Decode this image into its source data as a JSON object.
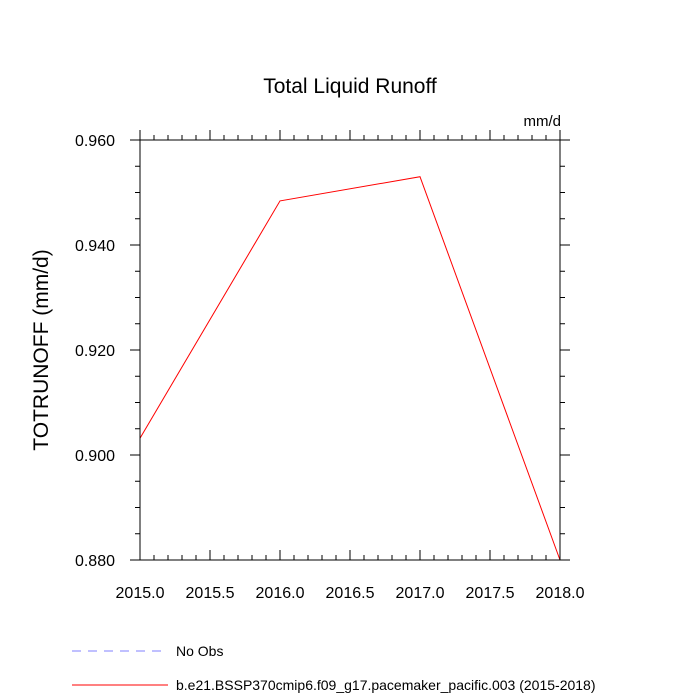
{
  "chart_data": {
    "type": "line",
    "title": "Total Liquid Runoff",
    "units": "mm/d",
    "ylabel": "TOTRUNOFF  (mm/d)",
    "xlabel": "",
    "xlim": [
      2015.0,
      2018.0
    ],
    "ylim": [
      0.88,
      0.96
    ],
    "x_ticks": [
      "2015.0",
      "2015.5",
      "2016.0",
      "2016.5",
      "2017.0",
      "2017.5",
      "2018.0"
    ],
    "y_ticks": [
      "0.880",
      "0.900",
      "0.920",
      "0.940",
      "0.960"
    ],
    "grid": false,
    "legend_position": "bottom-left",
    "series": [
      {
        "name": "No Obs",
        "color": "#8080ff",
        "style": "dashed",
        "x": [],
        "y": []
      },
      {
        "name": "b.e21.BSSP370cmip6.f09_g17.pacemaker_pacific.003 (2015-2018)",
        "color": "#ff0000",
        "style": "solid",
        "x": [
          2015,
          2016,
          2017,
          2018
        ],
        "y": [
          0.9032,
          0.9484,
          0.953,
          0.88
        ]
      }
    ]
  }
}
